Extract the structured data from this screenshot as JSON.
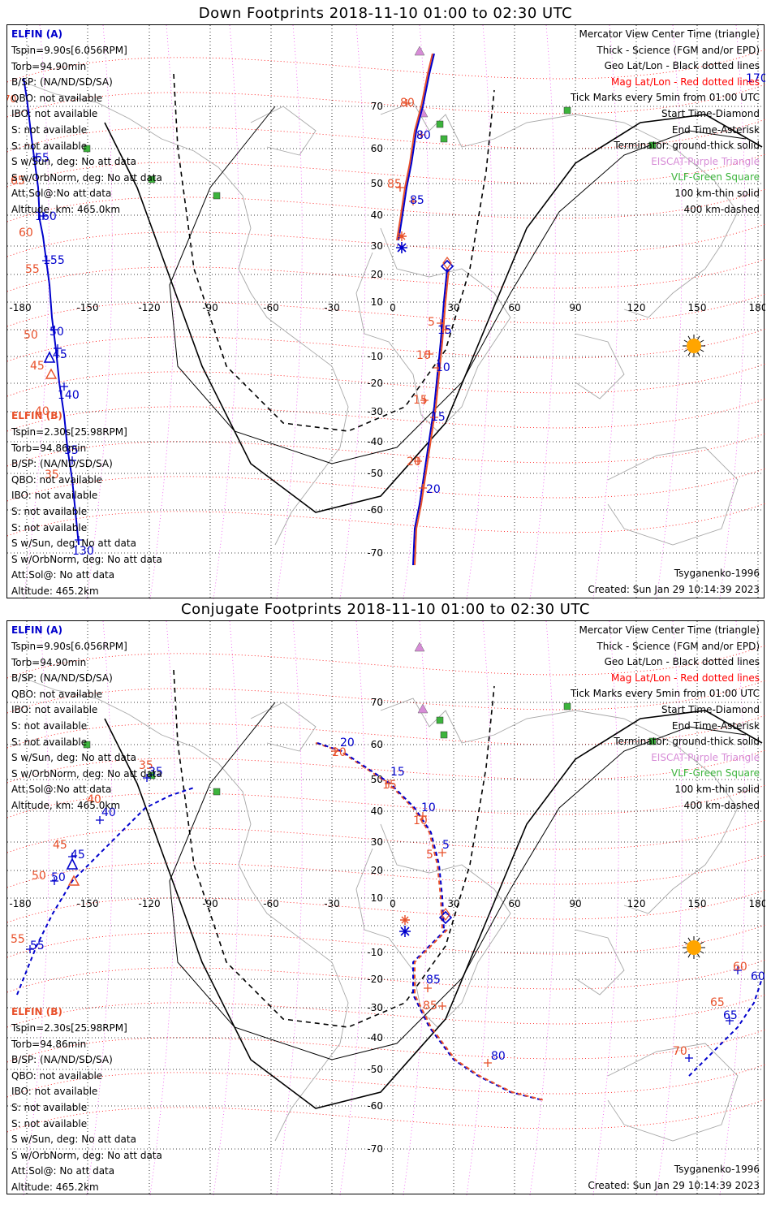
{
  "panels": [
    {
      "title": "Down Footprints 2018-11-10 01:00 to 02:30 UTC",
      "elfin_a_label": "ELFIN (A)",
      "info_a": [
        "Tspin=9.90s[6.056RPM]",
        "Torb=94.90min",
        "B/SP: (NA/ND/SD/SA)",
        "QBO: not available",
        "IBO: not available",
        "S: not available",
        "S: not available",
        "S w/Sun, deg: No att data",
        "S w/OrbNorm, deg: No att data",
        "Att.Sol@:No att data",
        "Altitude, km: 465.0km"
      ],
      "elfin_b_label": "ELFIN (B)",
      "info_b": [
        "Tspin=2.30s[25.98RPM]",
        "Torb=94.86min",
        "B/SP: (NA/ND/SD/SA)",
        "QBO: not available",
        "IBO: not available",
        "S: not available",
        "S: not available",
        "S w/Sun, deg: No att data",
        "S w/OrbNorm, deg: No att data",
        "Att.Sol@: No att data",
        "Altitude: 465.2km"
      ],
      "model": "Tsyganenko-1996",
      "created": "Created: Sun Jan 29 10:14:39 2023",
      "a_labels": [
        {
          "t": "70",
          "c": "#e8502a"
        },
        {
          "t": "65",
          "c": "#0000cc"
        },
        {
          "t": "65",
          "c": "#e8502a"
        },
        {
          "t": "160",
          "c": "#0000cc"
        },
        {
          "t": "60",
          "c": "#e8502a"
        },
        {
          "t": "155",
          "c": "#0000cc"
        },
        {
          "t": "55",
          "c": "#e8502a"
        },
        {
          "t": "50",
          "c": "#0000cc"
        },
        {
          "t": "50",
          "c": "#e8502a"
        },
        {
          "t": "45",
          "c": "#0000cc"
        },
        {
          "t": "45",
          "c": "#e8502a"
        },
        {
          "t": "140",
          "c": "#0000cc"
        },
        {
          "t": "40",
          "c": "#e8502a"
        },
        {
          "t": "35",
          "c": "#0000cc"
        },
        {
          "t": "35",
          "c": "#e8502a"
        },
        {
          "t": "130",
          "c": "#0000cc"
        },
        {
          "t": "170",
          "c": "#0000cc"
        }
      ],
      "b_labels": [
        {
          "t": "80",
          "c": "#e8502a"
        },
        {
          "t": "80",
          "c": "#0000cc"
        },
        {
          "t": "85",
          "c": "#e8502a"
        },
        {
          "t": "85",
          "c": "#0000cc"
        },
        {
          "t": "5",
          "c": "#e8502a"
        },
        {
          "t": "15",
          "c": "#0000cc"
        },
        {
          "t": "10",
          "c": "#e8502a"
        },
        {
          "t": "10",
          "c": "#0000cc"
        },
        {
          "t": "15",
          "c": "#e8502a"
        },
        {
          "t": "15",
          "c": "#0000cc"
        },
        {
          "t": "20",
          "c": "#e8502a"
        },
        {
          "t": "20",
          "c": "#0000cc"
        }
      ]
    },
    {
      "title": "Conjugate Footprints 2018-11-10 01:00 to 02:30 UTC",
      "elfin_a_label": "ELFIN (A)",
      "info_a": [
        "Tspin=9.90s[6.056RPM]",
        "Torb=94.90min",
        "B/SP: (NA/ND/SD/SA)",
        "QBO: not available",
        "IBO: not available",
        "S: not available",
        "S: not available",
        "S w/Sun, deg: No att data",
        "S w/OrbNorm, deg: No att data",
        "Att.Sol@:No att data",
        "Altitude, km: 465.0km"
      ],
      "elfin_b_label": "ELFIN (B)",
      "info_b": [
        "Tspin=2.30s[25.98RPM]",
        "Torb=94.86min",
        "B/SP: (NA/ND/SD/SA)",
        "QBO: not available",
        "IBO: not available",
        "S: not available",
        "S: not available",
        "S w/Sun, deg: No att data",
        "S w/OrbNorm, deg: No att data",
        "Att.Sol@: No att data",
        "Altitude: 465.2km"
      ],
      "model": "Tsyganenko-1996",
      "created": "Created: Sun Jan 29 10:14:39 2023",
      "a_labels": [
        {
          "t": "35",
          "c": "#e8502a"
        },
        {
          "t": "35",
          "c": "#0000cc"
        },
        {
          "t": "40",
          "c": "#e8502a"
        },
        {
          "t": "40",
          "c": "#0000cc"
        },
        {
          "t": "45",
          "c": "#e8502a"
        },
        {
          "t": "45",
          "c": "#0000cc"
        },
        {
          "t": "50",
          "c": "#e8502a"
        },
        {
          "t": "50",
          "c": "#0000cc"
        },
        {
          "t": "55",
          "c": "#e8502a"
        },
        {
          "t": "55",
          "c": "#0000cc"
        },
        {
          "t": "60",
          "c": "#e8502a"
        },
        {
          "t": "60",
          "c": "#0000cc"
        },
        {
          "t": "65",
          "c": "#e8502a"
        },
        {
          "t": "65",
          "c": "#0000cc"
        },
        {
          "t": "70",
          "c": "#e8502a"
        }
      ],
      "b_labels": [
        {
          "t": "20",
          "c": "#0000cc"
        },
        {
          "t": "20",
          "c": "#e8502a"
        },
        {
          "t": "15",
          "c": "#0000cc"
        },
        {
          "t": "15",
          "c": "#e8502a"
        },
        {
          "t": "10",
          "c": "#0000cc"
        },
        {
          "t": "10",
          "c": "#e8502a"
        },
        {
          "t": "5",
          "c": "#0000cc"
        },
        {
          "t": "5",
          "c": "#e8502a"
        },
        {
          "t": "85",
          "c": "#0000cc"
        },
        {
          "t": "85",
          "c": "#e8502a"
        },
        {
          "t": "80",
          "c": "#0000cc"
        }
      ]
    }
  ],
  "legend": [
    {
      "t": "Mercator View Center Time (triangle)",
      "c": "#000000"
    },
    {
      "t": "Thick - Science (FGM and/or EPD)",
      "c": "#000000"
    },
    {
      "t": "Geo Lat/Lon - Black dotted lines",
      "c": "#000000"
    },
    {
      "t": "Mag Lat/Lon - Red dotted lines",
      "c": "#ff0000"
    },
    {
      "t": "Tick Marks every 5min from 01:00 UTC",
      "c": "#000000"
    },
    {
      "t": "Start Time-Diamond",
      "c": "#000000"
    },
    {
      "t": "End Time-Asterisk",
      "c": "#000000"
    },
    {
      "t": "Terminator: ground-thick solid",
      "c": "#000000"
    },
    {
      "t": "EISCAT-Purple Triangle",
      "c": "#d78cd7"
    },
    {
      "t": "VLF-Green Square",
      "c": "#3cb43c"
    },
    {
      "t": "100 km-thin solid",
      "c": "#000000"
    },
    {
      "t": "400 km-dashed",
      "c": "#000000"
    }
  ],
  "lon_ticks": [
    "-180",
    "-150",
    "-120",
    "-90",
    "-60",
    "-30",
    "0",
    "30",
    "60",
    "90",
    "120",
    "150",
    "180"
  ],
  "lat_ticks": [
    "70",
    "60",
    "50",
    "40",
    "30",
    "20",
    "10",
    "0",
    "-10",
    "-20",
    "-30",
    "-40",
    "-50",
    "-60",
    "-70"
  ],
  "colors": {
    "elfin_a": "#0000cc",
    "elfin_b": "#e8502a",
    "mag_grid": "#ff0000",
    "geo_grid": "#000000",
    "eiscat": "#d78cd7",
    "vlf": "#3cb43c",
    "sun": "#ffa500",
    "coast": "#a8a8a8"
  }
}
